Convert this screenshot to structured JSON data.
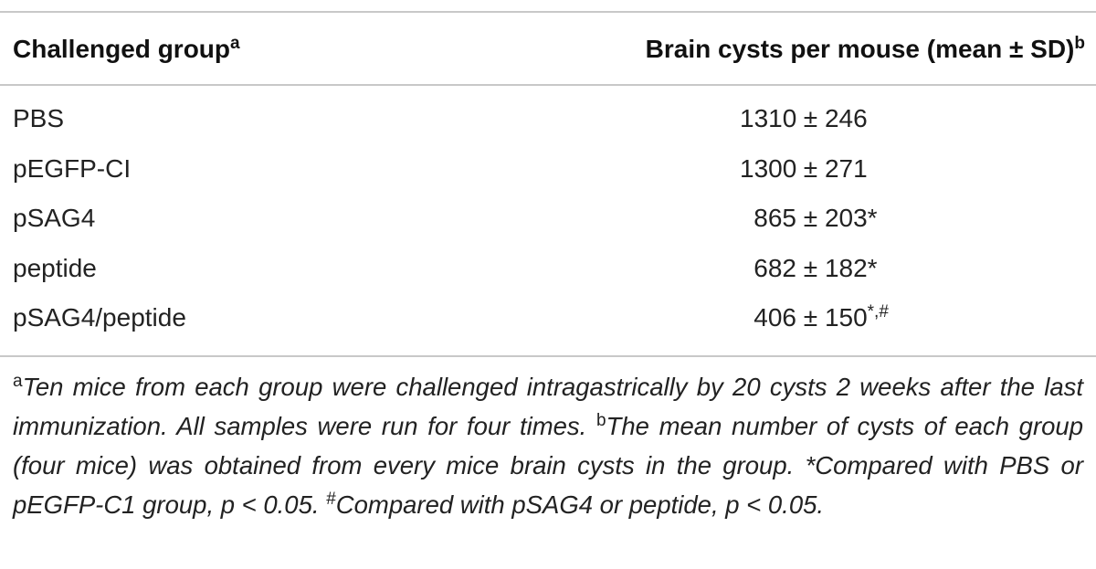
{
  "table": {
    "header": {
      "col1_label": "Challenged group",
      "col1_sup": "a",
      "col2_label": "Brain cysts per mouse (mean ± SD)",
      "col2_sup": "b"
    },
    "rows": [
      {
        "group": "PBS",
        "mean": "1310",
        "sd": "246",
        "mark": ""
      },
      {
        "group": "pEGFP-CI",
        "mean": "1300",
        "sd": "271",
        "mark": ""
      },
      {
        "group": "pSAG4",
        "mean": "865",
        "sd": "203",
        "mark": "*"
      },
      {
        "group": "peptide",
        "mean": "682",
        "sd": "182",
        "mark": "*"
      },
      {
        "group": "pSAG4/peptide",
        "mean": "406",
        "sd": "150",
        "mark": "*,#"
      }
    ],
    "pm_symbol": "±"
  },
  "footnotes": {
    "a_mark": "a",
    "a_text": "Ten mice from each group were challenged intragastrically by 20 cysts 2 weeks after the last immunization. All samples were run for four times.",
    "b_mark": "b",
    "b_text": "The mean number of cysts of each group (four mice) was obtained from every mice brain cysts in the group.",
    "star_text": "*Compared with PBS or pEGFP-C1 group, p < 0.05.",
    "hash_mark": "#",
    "hash_text": "Compared with pSAG4 or peptide, p < 0.05."
  }
}
